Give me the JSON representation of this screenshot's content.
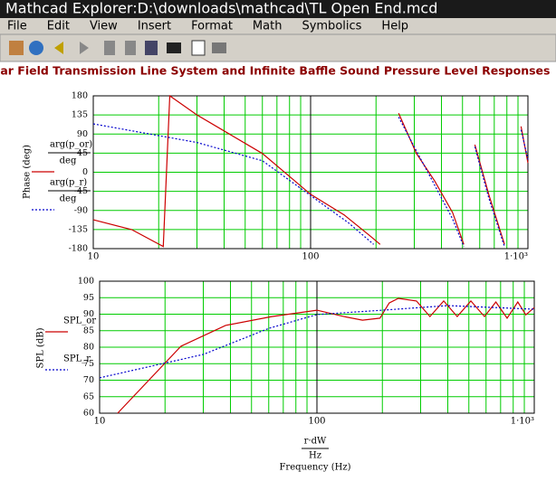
{
  "window": {
    "title": "Mathcad Explorer:D:\\downloads\\mathcad\\TL Open End.mcd"
  },
  "menu": [
    "File",
    "Edit",
    "View",
    "Insert",
    "Format",
    "Math",
    "Symbolics",
    "Help"
  ],
  "heading": "Far Field Transmission Line System and Infinite Baffle Sound Pressure Level Responses",
  "chart_data": [
    {
      "type": "line",
      "ylabel": "Phase (deg)",
      "xlog": true,
      "grid": true,
      "grid_color": "#00cc00",
      "xlim": [
        10,
        1000
      ],
      "xticks": [
        10,
        100,
        {
          "value": 1000,
          "label": "1·10³"
        }
      ],
      "xminor_ticks": [
        20,
        30,
        40,
        50,
        60,
        70,
        80,
        90,
        200,
        300,
        400,
        500,
        600,
        700,
        800,
        900
      ],
      "ylim": [
        -180,
        180
      ],
      "yticks": [
        180,
        135,
        90,
        45,
        0,
        -45,
        -90,
        -135,
        -180
      ],
      "series": [
        {
          "name": "arg(p_or)",
          "unit": "deg",
          "color": "#cc0000",
          "dash": false,
          "x": [
            10,
            15,
            21,
            22.5,
            30,
            60,
            100,
            143,
            190,
            209,
            213,
            254,
            307,
            372,
            450,
            507,
            512,
            570,
            660,
            780,
            815,
            930,
            1000
          ],
          "values": [
            -112,
            -135,
            -175,
            180,
            135,
            44,
            -52,
            -101,
            -152,
            -170,
            null,
            139,
            44,
            -20,
            -95,
            -170,
            null,
            65,
            -52,
            -170,
            null,
            108,
            22
          ]
        },
        {
          "name": "arg(p_r)",
          "unit": "deg",
          "color": "#0000cc",
          "dash": true,
          "x": [
            10,
            30,
            60,
            100,
            150,
            195,
            197,
            254,
            307,
            372,
            450,
            507,
            510,
            570,
            660,
            780,
            815,
            930,
            1000
          ],
          "values": [
            114,
            70,
            27,
            -55,
            -120,
            -170,
            null,
            130,
            50,
            -30,
            -110,
            -175,
            null,
            60,
            -60,
            -175,
            null,
            100,
            30
          ]
        }
      ]
    },
    {
      "type": "line",
      "ylabel": "SPL (dB)",
      "xlog": true,
      "grid": true,
      "grid_color": "#00cc00",
      "xlabel_top": "r·dW",
      "xlabel_unit": "Hz",
      "xlabel": "Frequency (Hz)",
      "xlim": [
        10,
        1000
      ],
      "xticks": [
        10,
        100,
        {
          "value": 1000,
          "label": "1·10³"
        }
      ],
      "xminor_ticks": [
        20,
        30,
        40,
        50,
        60,
        70,
        80,
        90,
        200,
        300,
        400,
        500,
        600,
        700,
        800,
        900
      ],
      "ylim": [
        60,
        100
      ],
      "yticks": [
        100,
        95,
        90,
        85,
        80,
        75,
        70,
        65,
        60
      ],
      "series": [
        {
          "name": "SPL_or",
          "color": "#cc0000",
          "dash": false,
          "x": [
            12.1,
            23.7,
            38,
            62,
            100,
            133,
            162,
            195,
            215,
            237,
            287,
            331,
            383,
            442,
            511,
            590,
            666,
            750,
            840,
            915,
            1000
          ],
          "values": [
            60,
            80.3,
            86.6,
            89.3,
            91.2,
            89.3,
            88.2,
            88.8,
            93.4,
            94.8,
            94,
            89.3,
            94,
            89.3,
            94,
            89.3,
            93.7,
            88.8,
            93.7,
            89.8,
            92
          ]
        },
        {
          "name": "SPL_r",
          "color": "#0000cc",
          "dash": true,
          "x": [
            10,
            30,
            60,
            100,
            200,
            400,
            1000
          ],
          "values": [
            70.7,
            77.8,
            85.7,
            89.9,
            91.2,
            92.6,
            91.5
          ]
        }
      ]
    }
  ]
}
